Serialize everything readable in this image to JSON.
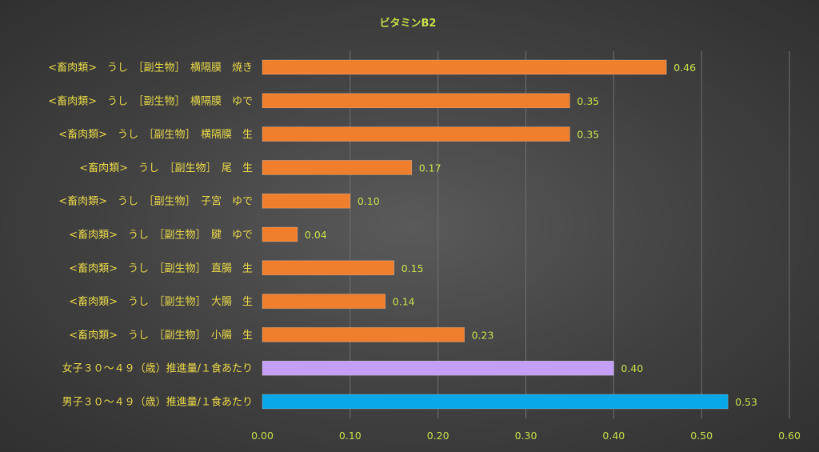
{
  "chart_data": {
    "type": "bar",
    "orientation": "horizontal",
    "title": "ビタミンB2",
    "categories": [
      "<畜肉類>　うし　［副生物］　横隔膜　焼き",
      "<畜肉類>　うし　［副生物］　横隔膜　ゆで",
      "<畜肉類>　うし　［副生物］　横隔膜　生",
      "<畜肉類>　うし　［副生物］　尾　生",
      "<畜肉類>　うし　［副生物］　子宮　ゆで",
      "<畜肉類>　うし　［副生物］　腱　ゆで",
      "<畜肉類>　うし　［副生物］　直腸　生",
      "<畜肉類>　うし　［副生物］　大腸　生",
      "<畜肉類>　うし　［副生物］　小腸　生",
      "女子３０～４９（歳）推進量/１食あたり",
      "男子３０～４９（歳）推進量/１食あたり"
    ],
    "values": [
      0.46,
      0.35,
      0.35,
      0.17,
      0.1,
      0.04,
      0.15,
      0.14,
      0.23,
      0.4,
      0.53
    ],
    "value_labels": [
      "0.46",
      "0.35",
      "0.35",
      "0.17",
      "0.10",
      "0.04",
      "0.15",
      "0.14",
      "0.23",
      "0.40",
      "0.53"
    ],
    "colors": [
      "#f07f2d",
      "#f07f2d",
      "#f07f2d",
      "#f07f2d",
      "#f07f2d",
      "#f07f2d",
      "#f07f2d",
      "#f07f2d",
      "#f07f2d",
      "#c59ef5",
      "#08a9e6"
    ],
    "xlim": [
      0,
      0.6
    ],
    "x_ticks": [
      "0.00",
      "0.10",
      "0.20",
      "0.30",
      "0.40",
      "0.50",
      "0.60"
    ],
    "x_tick_values": [
      0,
      0.1,
      0.2,
      0.3,
      0.4,
      0.5,
      0.6
    ],
    "grid": true,
    "legend": "none"
  }
}
